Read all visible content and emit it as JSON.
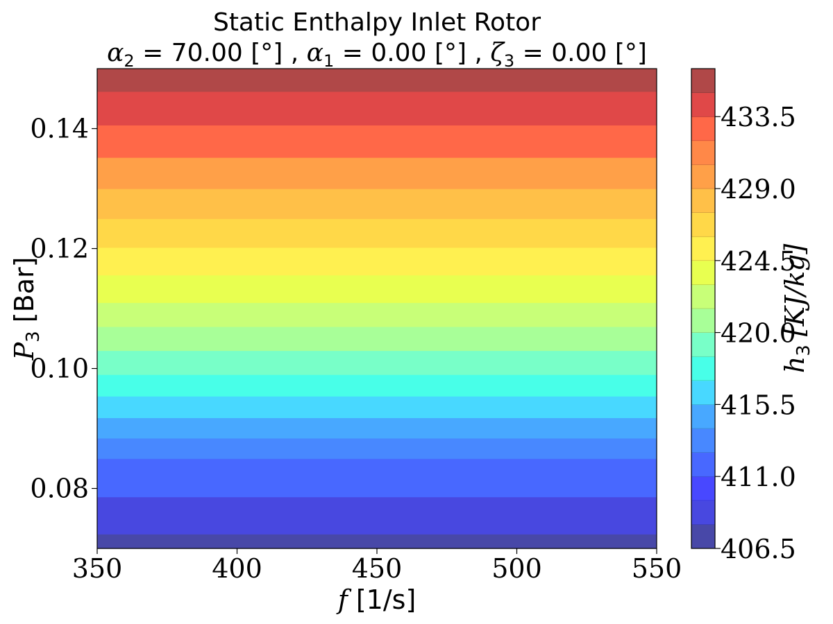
{
  "chart_data": {
    "type": "heatmap",
    "subtype": "filled-contour",
    "title": "Static Enthalpy Inlet Rotor",
    "subtitle": {
      "alpha2": "70.00",
      "alpha1": "0.00",
      "zeta3": "0.00",
      "unit": "[°]"
    },
    "xlabel": {
      "symbol": "f",
      "unit": "[1/s]"
    },
    "ylabel": {
      "symbol": "P",
      "subscript": "3",
      "unit": "[Bar]"
    },
    "colorbar_label": {
      "symbol": "h",
      "subscript": "3",
      "unit": "[KJ/kg]"
    },
    "xlim": [
      350,
      550
    ],
    "ylim": [
      0.07,
      0.15
    ],
    "xticks": [
      350,
      400,
      450,
      500,
      550
    ],
    "yticks": [
      0.08,
      0.1,
      0.12,
      0.14
    ],
    "ytick_labels": [
      "0.08",
      "0.10",
      "0.12",
      "0.14"
    ],
    "colorbar_range": [
      406.5,
      436.5
    ],
    "colorbar_ticks": [
      "406.5",
      "411.0",
      "415.5",
      "420.0",
      "424.5",
      "429.0",
      "433.5"
    ],
    "levels": [
      406.5,
      408.0,
      409.5,
      411.0,
      412.5,
      414.0,
      415.5,
      417.0,
      418.5,
      420.0,
      421.5,
      423.0,
      424.5,
      426.0,
      427.5,
      429.0,
      430.5,
      432.0,
      433.5,
      435.0,
      436.5
    ],
    "level_colors": [
      "#4848a8",
      "#4848e0",
      "#4848ff",
      "#4868ff",
      "#4888ff",
      "#48a8ff",
      "#48d8ff",
      "#48ffe8",
      "#78ffc8",
      "#a8ff98",
      "#c8ff78",
      "#e8ff50",
      "#fff050",
      "#ffd848",
      "#ffc048",
      "#ffa048",
      "#ff8848",
      "#ff6848",
      "#e04848",
      "#b04848"
    ],
    "bands": [
      {
        "p_from": 0.07,
        "p_to": 0.0724,
        "level_index": 0
      },
      {
        "p_from": 0.0724,
        "p_to": 0.0786,
        "level_index": 1
      },
      {
        "p_from": 0.0786,
        "p_to": 0.085,
        "level_index": 3
      },
      {
        "p_from": 0.085,
        "p_to": 0.0884,
        "level_index": 4
      },
      {
        "p_from": 0.0884,
        "p_to": 0.0918,
        "level_index": 5
      },
      {
        "p_from": 0.0918,
        "p_to": 0.0954,
        "level_index": 6
      },
      {
        "p_from": 0.0954,
        "p_to": 0.099,
        "level_index": 7
      },
      {
        "p_from": 0.099,
        "p_to": 0.103,
        "level_index": 8
      },
      {
        "p_from": 0.103,
        "p_to": 0.107,
        "level_index": 9
      },
      {
        "p_from": 0.107,
        "p_to": 0.111,
        "level_index": 10
      },
      {
        "p_from": 0.111,
        "p_to": 0.1156,
        "level_index": 11
      },
      {
        "p_from": 0.1156,
        "p_to": 0.1202,
        "level_index": 12
      },
      {
        "p_from": 0.1202,
        "p_to": 0.125,
        "level_index": 13
      },
      {
        "p_from": 0.125,
        "p_to": 0.13,
        "level_index": 14
      },
      {
        "p_from": 0.13,
        "p_to": 0.1352,
        "level_index": 15
      },
      {
        "p_from": 0.1352,
        "p_to": 0.1406,
        "level_index": 17
      },
      {
        "p_from": 0.1406,
        "p_to": 0.1462,
        "level_index": 18
      },
      {
        "p_from": 0.1462,
        "p_to": 0.15,
        "level_index": 19
      }
    ]
  }
}
